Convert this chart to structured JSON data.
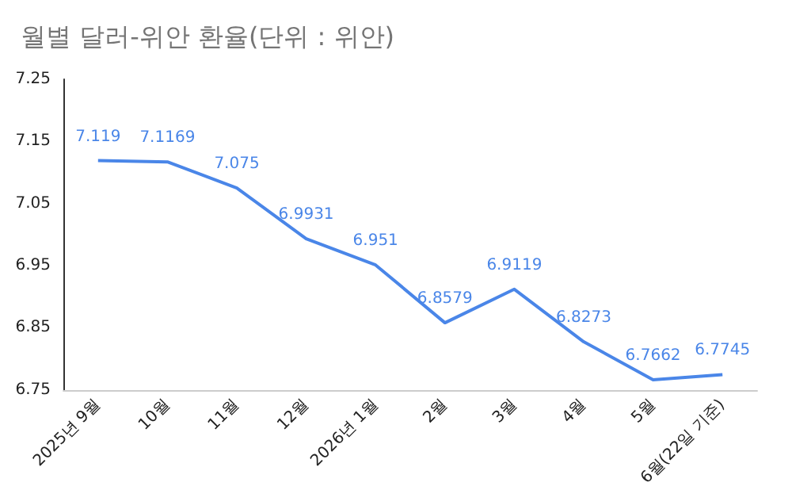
{
  "chart_data": {
    "type": "line",
    "title": "월별 달러-위안 환율(단위 : 위안)",
    "categories": [
      "2025년 9월",
      "10월",
      "11월",
      "12월",
      "2026년 1월",
      "2월",
      "3월",
      "4월",
      "5월",
      "6월(22일 기준)"
    ],
    "series": [
      {
        "color": "#4a86e8",
        "values": [
          7.119,
          7.1169,
          7.075,
          6.9931,
          6.951,
          6.8579,
          6.9119,
          6.8273,
          6.7662,
          6.7745
        ]
      }
    ],
    "ylim": [
      6.75,
      7.25
    ],
    "yticks": [
      6.75,
      6.85,
      6.95,
      7.05,
      7.15,
      7.25
    ],
    "data_labels": true,
    "grid": false,
    "marker": "none",
    "line_style": "solid"
  }
}
